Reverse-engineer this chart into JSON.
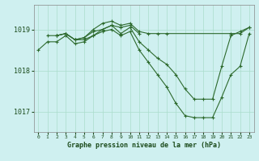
{
  "bg_color": "#cff0f0",
  "grid_color": "#aaddcc",
  "line_color": "#2d6a2d",
  "marker_color": "#2d6a2d",
  "xlabel": "Graphe pression niveau de la mer (hPa)",
  "ylim": [
    1016.5,
    1019.6
  ],
  "xlim": [
    -0.5,
    23.5
  ],
  "yticks": [
    1017,
    1018,
    1019
  ],
  "xticks": [
    0,
    1,
    2,
    3,
    4,
    5,
    6,
    7,
    8,
    9,
    10,
    11,
    12,
    13,
    14,
    15,
    16,
    17,
    18,
    19,
    20,
    21,
    22,
    23
  ],
  "series": [
    {
      "x": [
        1,
        2,
        3,
        4,
        5,
        6,
        7,
        8,
        9,
        10,
        11,
        12,
        13,
        14,
        21,
        22,
        23
      ],
      "y": [
        1018.85,
        1018.85,
        1018.9,
        1018.75,
        1018.8,
        1019.0,
        1019.15,
        1019.2,
        1019.1,
        1019.15,
        1018.95,
        1018.9,
        1018.9,
        1018.9,
        1018.9,
        1018.9,
        1019.05
      ]
    },
    {
      "x": [
        0,
        1,
        2,
        3,
        4,
        5,
        6,
        7,
        8,
        9,
        10,
        11
      ],
      "y": [
        1018.5,
        1018.7,
        1018.7,
        1018.85,
        1018.65,
        1018.7,
        1018.85,
        1019.0,
        1019.1,
        1019.05,
        1019.1,
        1018.9
      ]
    },
    {
      "x": [
        2,
        3,
        4,
        5,
        6,
        7,
        8,
        9,
        10,
        11,
        12,
        13,
        14,
        15,
        16,
        17,
        18,
        19,
        20,
        21,
        22,
        23
      ],
      "y": [
        1018.85,
        1018.9,
        1018.75,
        1018.8,
        1018.95,
        1019.0,
        1019.1,
        1018.9,
        1019.05,
        1018.7,
        1018.5,
        1018.3,
        1018.15,
        1017.9,
        1017.55,
        1017.3,
        1017.3,
        1017.3,
        1018.1,
        1018.85,
        1018.95,
        1019.05
      ]
    },
    {
      "x": [
        2,
        3,
        4,
        5,
        6,
        7,
        8,
        9,
        10,
        11,
        12,
        13,
        14,
        15,
        16,
        17,
        18,
        19,
        20,
        21,
        22,
        23
      ],
      "y": [
        1018.85,
        1018.9,
        1018.75,
        1018.75,
        1018.85,
        1018.95,
        1019.0,
        1018.85,
        1018.95,
        1018.5,
        1018.2,
        1017.9,
        1017.6,
        1017.2,
        1016.9,
        1016.85,
        1016.85,
        1016.85,
        1017.35,
        1017.9,
        1018.1,
        1018.9
      ]
    }
  ]
}
